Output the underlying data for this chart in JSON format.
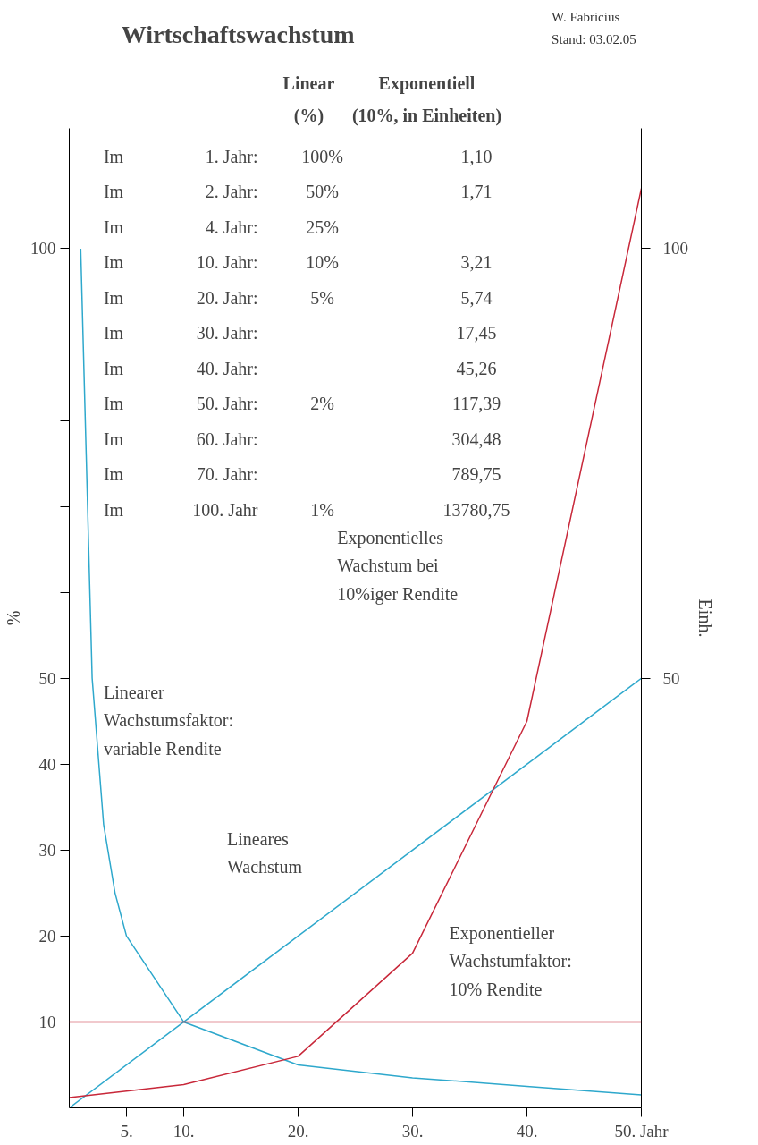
{
  "chart_data": {
    "type": "line",
    "title": "Wirtschaftswachstum",
    "ylabel": "%",
    "y2label": "Einh.",
    "xlim": [
      0,
      50
    ],
    "xticks": [
      {
        "value": 5,
        "label": "5."
      },
      {
        "value": 10,
        "label": "10."
      },
      {
        "value": 20,
        "label": "20."
      },
      {
        "value": 30,
        "label": "30."
      },
      {
        "value": 40,
        "label": "40."
      },
      {
        "value": 50,
        "label": "50. Jahr"
      }
    ],
    "ylim": [
      0,
      114
    ],
    "yticks": [
      10,
      20,
      30,
      40,
      50,
      {
        "value": 60,
        "label": null
      },
      {
        "value": 70,
        "label": null
      },
      {
        "value": 80,
        "label": null
      },
      {
        "value": 90,
        "label": null
      },
      100
    ],
    "y2lim": [
      0,
      114
    ],
    "y2ticks": [
      50,
      100
    ],
    "grid": false,
    "series": [
      {
        "color": "#2ea8cc",
        "x": [
          1,
          2,
          3,
          4,
          5,
          10,
          20,
          30,
          40,
          50
        ],
        "values": [
          100,
          50,
          33,
          25,
          20,
          10,
          5,
          3.5,
          2.5,
          1.5
        ]
      },
      {
        "color": "#2ea8cc",
        "x": [
          0,
          50
        ],
        "values": [
          0,
          50
        ]
      },
      {
        "color": "#c8283a",
        "x": [
          0,
          10,
          20,
          30,
          40,
          50
        ],
        "values": [
          1.2,
          2.7,
          6,
          18,
          45,
          107
        ]
      }
    ],
    "ref_lines": [
      {
        "axis": "y",
        "value": 10,
        "label": null,
        "color": "#c8283a"
      }
    ],
    "annotations": [
      "W. Fabricius",
      "Stand: 03.02.05",
      "\t\tLinear\tExponentiell",
      "\t\t(%)\t(10%, in Einheiten)",
      "Im\t1. Jahr:\t100%\t1,10",
      "Im\t2. Jahr:\t50%\t1,71",
      "Im\t4. Jahr:\t25%\t",
      "Im\t10. Jahr:\t10%\t3,21",
      "Im\t20. Jahr:\t5%\t5,74",
      "Im\t30. Jahr:\t\t17,45",
      "Im\t40. Jahr:\t\t45,26",
      "Im\t50. Jahr:\t2%\t117,39",
      "Im\t60. Jahr:\t\t304,48",
      "Im\t70. Jahr:\t\t789,75",
      "Im\t100. Jahr\t1%\t13780,75",
      "Linearer\nWachstumsfaktor:\nvariable Rendite",
      "Exponentielles\nWachstum bei\n10%iger Rendite",
      "Lineares\nWachstum",
      "Exponentieller\nWachstumfaktor:\n10% Rendite"
    ]
  }
}
